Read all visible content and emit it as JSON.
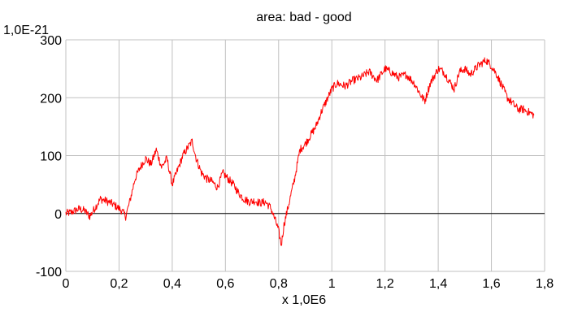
{
  "chart_data": {
    "type": "line",
    "title": "area: bad - good",
    "y_unit_label": "1,0E-21",
    "xlabel": "x 1,0E6",
    "ylabel": "",
    "xlim": [
      0,
      1.8
    ],
    "ylim": [
      -100,
      300
    ],
    "x_ticks": [
      0,
      0.2,
      0.4,
      0.6,
      0.8,
      1.0,
      1.2,
      1.4,
      1.6,
      1.8
    ],
    "x_tick_labels": [
      "0",
      "0,2",
      "0,4",
      "0,6",
      "0,8",
      "1",
      "1,2",
      "1,4",
      "1,6",
      "1,8"
    ],
    "y_ticks": [
      -100,
      0,
      100,
      200,
      300
    ],
    "y_tick_labels": [
      "-100",
      "0",
      "100",
      "200",
      "300"
    ],
    "grid": true,
    "zero_line": true,
    "legend": "none",
    "series": [
      {
        "color": "#ff0000",
        "x": [
          0,
          0.02,
          0.05,
          0.07,
          0.09,
          0.11,
          0.13,
          0.15,
          0.17,
          0.19,
          0.21,
          0.225,
          0.24,
          0.26,
          0.28,
          0.3,
          0.32,
          0.34,
          0.36,
          0.38,
          0.4,
          0.42,
          0.44,
          0.46,
          0.475,
          0.49,
          0.51,
          0.53,
          0.55,
          0.57,
          0.59,
          0.61,
          0.63,
          0.65,
          0.67,
          0.69,
          0.71,
          0.73,
          0.75,
          0.77,
          0.79,
          0.8,
          0.81,
          0.82,
          0.84,
          0.86,
          0.88,
          0.9,
          0.92,
          0.94,
          0.96,
          0.98,
          1.0,
          1.02,
          1.05,
          1.08,
          1.11,
          1.14,
          1.17,
          1.2,
          1.22,
          1.25,
          1.28,
          1.31,
          1.34,
          1.35,
          1.37,
          1.4,
          1.42,
          1.44,
          1.46,
          1.48,
          1.5,
          1.52,
          1.55,
          1.58,
          1.6,
          1.62,
          1.64,
          1.66,
          1.68,
          1.7,
          1.72,
          1.74,
          1.76
        ],
        "y": [
          0,
          2,
          8,
          5,
          -5,
          10,
          25,
          22,
          18,
          12,
          5,
          -5,
          20,
          60,
          80,
          95,
          85,
          110,
          80,
          95,
          50,
          75,
          100,
          115,
          125,
          95,
          70,
          60,
          55,
          45,
          70,
          60,
          50,
          35,
          25,
          20,
          22,
          18,
          20,
          10,
          -15,
          -30,
          -55,
          -20,
          20,
          60,
          110,
          120,
          135,
          150,
          175,
          195,
          215,
          225,
          220,
          230,
          235,
          245,
          230,
          250,
          245,
          235,
          240,
          225,
          200,
          195,
          225,
          250,
          245,
          230,
          215,
          245,
          250,
          240,
          255,
          265,
          255,
          240,
          220,
          200,
          190,
          180,
          180,
          175,
          170
        ]
      }
    ]
  }
}
